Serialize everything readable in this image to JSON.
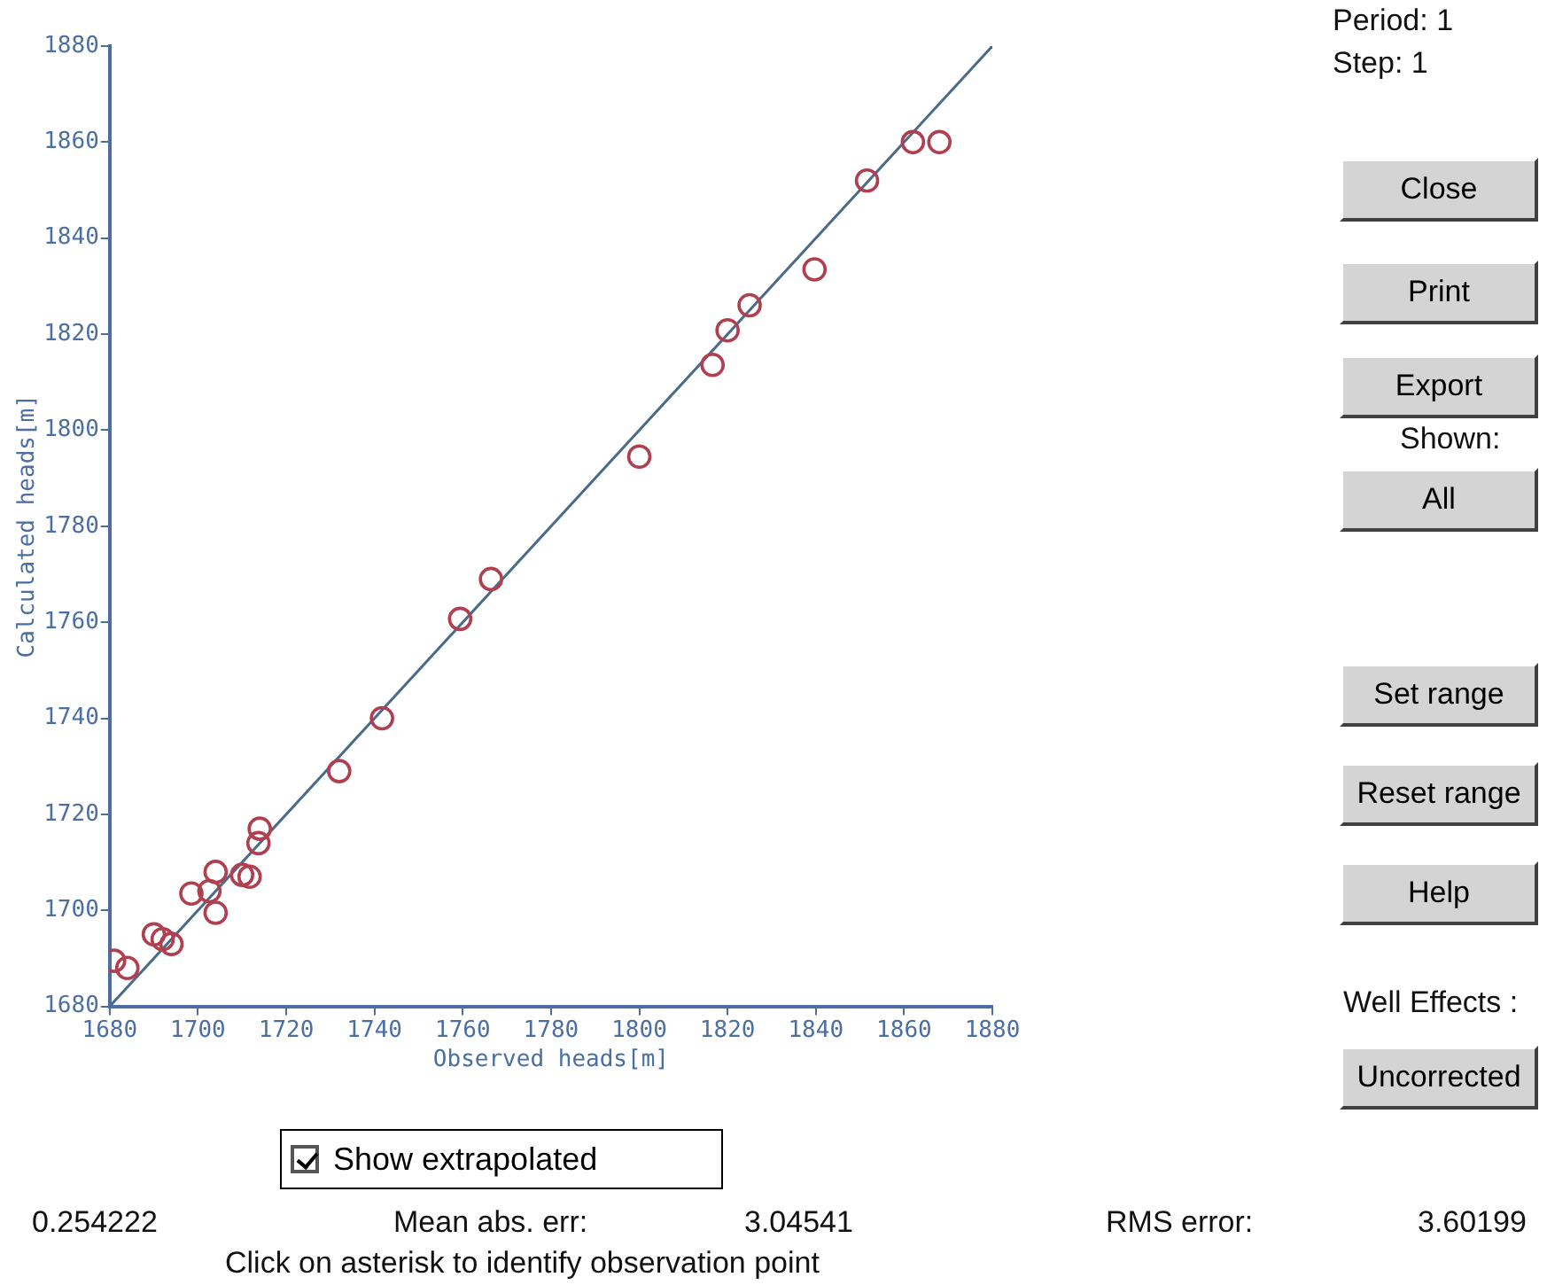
{
  "chart_data": {
    "type": "scatter",
    "xlabel": "Observed heads[m]",
    "ylabel": "Calculated heads[m]",
    "xlim": [
      1680,
      1880
    ],
    "xticks": [
      1680,
      1700,
      1720,
      1740,
      1760,
      1780,
      1800,
      1820,
      1840,
      1860,
      1880
    ],
    "ylim": [
      1680,
      1880
    ],
    "yticks": [
      1680,
      1700,
      1720,
      1740,
      1760,
      1780,
      1800,
      1820,
      1840,
      1860,
      1880
    ],
    "grid": false,
    "legend": false,
    "marker": "circle",
    "series": [
      {
        "type": "scatter",
        "color": "#b04050",
        "x": [
          1681,
          1684,
          1690,
          1692,
          1694,
          1698.5,
          1702.6,
          1704,
          1704,
          1710,
          1711.7,
          1713.7,
          1714,
          1732,
          1741.7,
          1759.4,
          1766.4,
          1800,
          1816.6,
          1820,
          1825,
          1839.7,
          1851.6,
          1862,
          1868
        ],
        "values": [
          1689.5,
          1688,
          1695,
          1694,
          1693,
          1703.5,
          1704,
          1708,
          1699.5,
          1707.4,
          1707,
          1714,
          1717,
          1729,
          1740,
          1760.7,
          1769,
          1794.5,
          1813.6,
          1820.8,
          1826,
          1833.5,
          1852,
          1860,
          1860
        ]
      },
      {
        "type": "line",
        "color": "#4a6a8a",
        "marker": "none",
        "x": [
          1680,
          1880
        ],
        "values": [
          1680,
          1880
        ]
      }
    ],
    "annotations": [
      "Period: 1",
      "Step: 1",
      "Close",
      "Print",
      "Export",
      "Shown:",
      "All",
      "Set range",
      "Reset range",
      "Help",
      "Well Effects :",
      "Uncorrected",
      "Show extrapolated",
      "0.254222",
      "Mean abs. err:",
      "3.04541",
      "RMS error:",
      "3.60199",
      "Click on asterisk to identify observation point"
    ]
  }
}
